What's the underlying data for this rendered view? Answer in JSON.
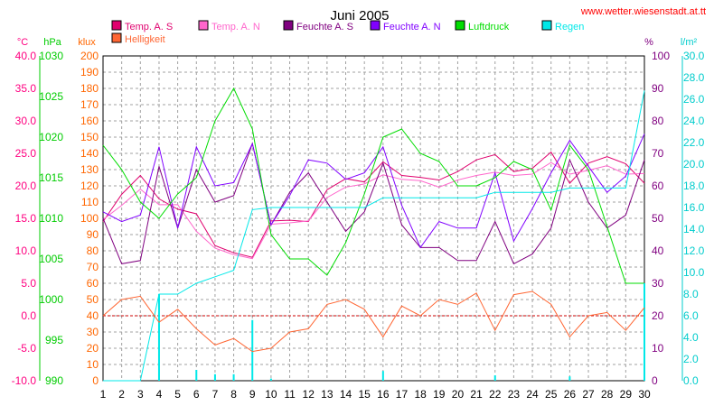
{
  "chart_data": {
    "type": "line",
    "title": "Juni 2005",
    "watermark": "www.wetter.wiesenstadt.at.tt",
    "x": [
      1,
      2,
      3,
      4,
      5,
      6,
      7,
      8,
      9,
      10,
      11,
      12,
      13,
      14,
      15,
      16,
      17,
      18,
      19,
      20,
      21,
      22,
      23,
      24,
      25,
      26,
      27,
      28,
      29,
      30
    ],
    "axes": [
      {
        "id": "temp",
        "unit": "°C",
        "color": "#ff0080",
        "side": "left",
        "ylim": [
          -10,
          40
        ],
        "ticks": [
          "40.0",
          "35.0",
          "30.0",
          "25.0",
          "20.0",
          "15.0",
          "10.0",
          "5.0",
          "0.0",
          "-5.0",
          "-10.0"
        ]
      },
      {
        "id": "press",
        "unit": "hPa",
        "color": "#00cc00",
        "side": "left",
        "ylim": [
          990,
          1030
        ],
        "ticks": [
          "1030",
          "1025",
          "1020",
          "1015",
          "1010",
          "1005",
          "1000",
          "995",
          "990"
        ]
      },
      {
        "id": "lux",
        "unit": "klux",
        "color": "#ff6600",
        "side": "left",
        "ylim": [
          0,
          200
        ],
        "ticks": [
          "200",
          "190",
          "180",
          "170",
          "160",
          "150",
          "140",
          "130",
          "120",
          "110",
          "100",
          "90",
          "80",
          "70",
          "60",
          "50",
          "40",
          "30",
          "20",
          "10",
          "0"
        ]
      },
      {
        "id": "hum",
        "unit": "%",
        "color": "#800080",
        "side": "right",
        "ylim": [
          0,
          100
        ],
        "ticks": [
          "100",
          "90",
          "80",
          "70",
          "60",
          "50",
          "40",
          "30",
          "20",
          "10",
          "0"
        ]
      },
      {
        "id": "rain",
        "unit": "l/m²",
        "color": "#00cccc",
        "side": "right",
        "ylim": [
          0,
          30
        ],
        "ticks": [
          "30.0",
          "28.0",
          "26.0",
          "24.0",
          "22.0",
          "20.0",
          "18.0",
          "16.0",
          "14.0",
          "12.0",
          "10.0",
          "8.0",
          "6.0",
          "4.0",
          "2.0",
          "0.0"
        ]
      }
    ],
    "series": [
      {
        "name": "Temp. A. S",
        "axis": "temp",
        "color": "#e0006e",
        "values": [
          14.5,
          18.7,
          21.6,
          18.0,
          16.4,
          15.7,
          10.8,
          9.7,
          9.0,
          14.6,
          14.7,
          14.5,
          19.4,
          21.1,
          20.6,
          23.7,
          21.6,
          21.3,
          20.9,
          22.2,
          24.0,
          24.8,
          22.2,
          22.7,
          25.2,
          20.4,
          23.5,
          24.5,
          23.4,
          20.4
        ]
      },
      {
        "name": "Temp. A. N",
        "axis": "temp",
        "color": "#ff66cc",
        "values": [
          14.8,
          17.0,
          19.5,
          17.1,
          17.1,
          13.0,
          10.4,
          9.4,
          8.8,
          14.1,
          14.3,
          14.6,
          18.2,
          19.8,
          20.3,
          21.7,
          21.0,
          20.8,
          19.8,
          20.9,
          21.6,
          22.1,
          21.6,
          21.8,
          23.6,
          21.8,
          22.4,
          23.1,
          21.8,
          21.9
        ]
      },
      {
        "name": "Feuchte A. S",
        "axis": "hum",
        "color": "#800080",
        "values": [
          50,
          36,
          37,
          66,
          47,
          65,
          55,
          57,
          73,
          48,
          58,
          64,
          55,
          46,
          52,
          67,
          48,
          41,
          41,
          37,
          37,
          49,
          36,
          39,
          47,
          68,
          55,
          47,
          51,
          68
        ]
      },
      {
        "name": "Feuchte A. N",
        "axis": "hum",
        "color": "#8000ff",
        "values": [
          52,
          49,
          51,
          72,
          47,
          72,
          60,
          61,
          73,
          48,
          57,
          68,
          67,
          62,
          64,
          72,
          54,
          41,
          49,
          47,
          47,
          64,
          43,
          53,
          64,
          74,
          66,
          58,
          63,
          76
        ]
      },
      {
        "name": "Luftdruck",
        "axis": "press",
        "color": "#00dd00",
        "values": [
          1019,
          1016,
          1012,
          1010,
          1013,
          1015,
          1022,
          1026,
          1021,
          1008,
          1005,
          1005,
          1003,
          1007,
          1013,
          1020,
          1021,
          1018,
          1017,
          1014,
          1014,
          1015,
          1017,
          1016,
          1011,
          1019,
          1016,
          1009,
          1002,
          1002
        ]
      },
      {
        "name": "Regen",
        "axis": "rain",
        "color": "#00e8e8",
        "type": "step",
        "values": [
          0,
          0,
          0,
          8,
          8,
          9,
          9.6,
          10.2,
          15.8,
          16.0,
          16.0,
          16.0,
          16.0,
          16.0,
          16.0,
          16.9,
          16.9,
          16.9,
          16.9,
          16.9,
          16.9,
          17.4,
          17.4,
          17.4,
          17.4,
          17.8,
          17.8,
          17.8,
          17.8,
          26.8
        ]
      },
      {
        "name": "Regen (Tag)",
        "axis": "rain",
        "color": "#00e8e8",
        "type": "bar",
        "values": [
          0,
          0,
          0,
          8,
          0,
          1,
          0.6,
          0.6,
          5.6,
          0.2,
          0,
          0,
          0,
          0,
          0,
          0.9,
          0,
          0,
          0,
          0,
          0,
          0.5,
          0,
          0,
          0,
          0.4,
          0,
          0,
          0,
          9.0
        ]
      },
      {
        "name": "Helligkeit",
        "axis": "lux",
        "color": "#ff6633",
        "values": [
          40,
          50,
          52,
          36,
          44,
          32,
          22,
          26,
          18,
          20,
          30,
          32,
          47,
          50,
          44,
          27,
          46,
          40,
          50,
          47,
          54,
          31,
          53,
          55,
          47,
          27,
          40,
          42,
          31,
          45
        ]
      }
    ],
    "reference_line": {
      "axis": "temp",
      "value": 0,
      "color": "#cc0000"
    },
    "legend": [
      "Temp. A. S",
      "Helligkeit",
      "Temp. A. N",
      "Feuchte A. S",
      "Feuchte A. N",
      "Luftdruck",
      "Regen"
    ],
    "legend_placement": "top",
    "grid": true
  }
}
